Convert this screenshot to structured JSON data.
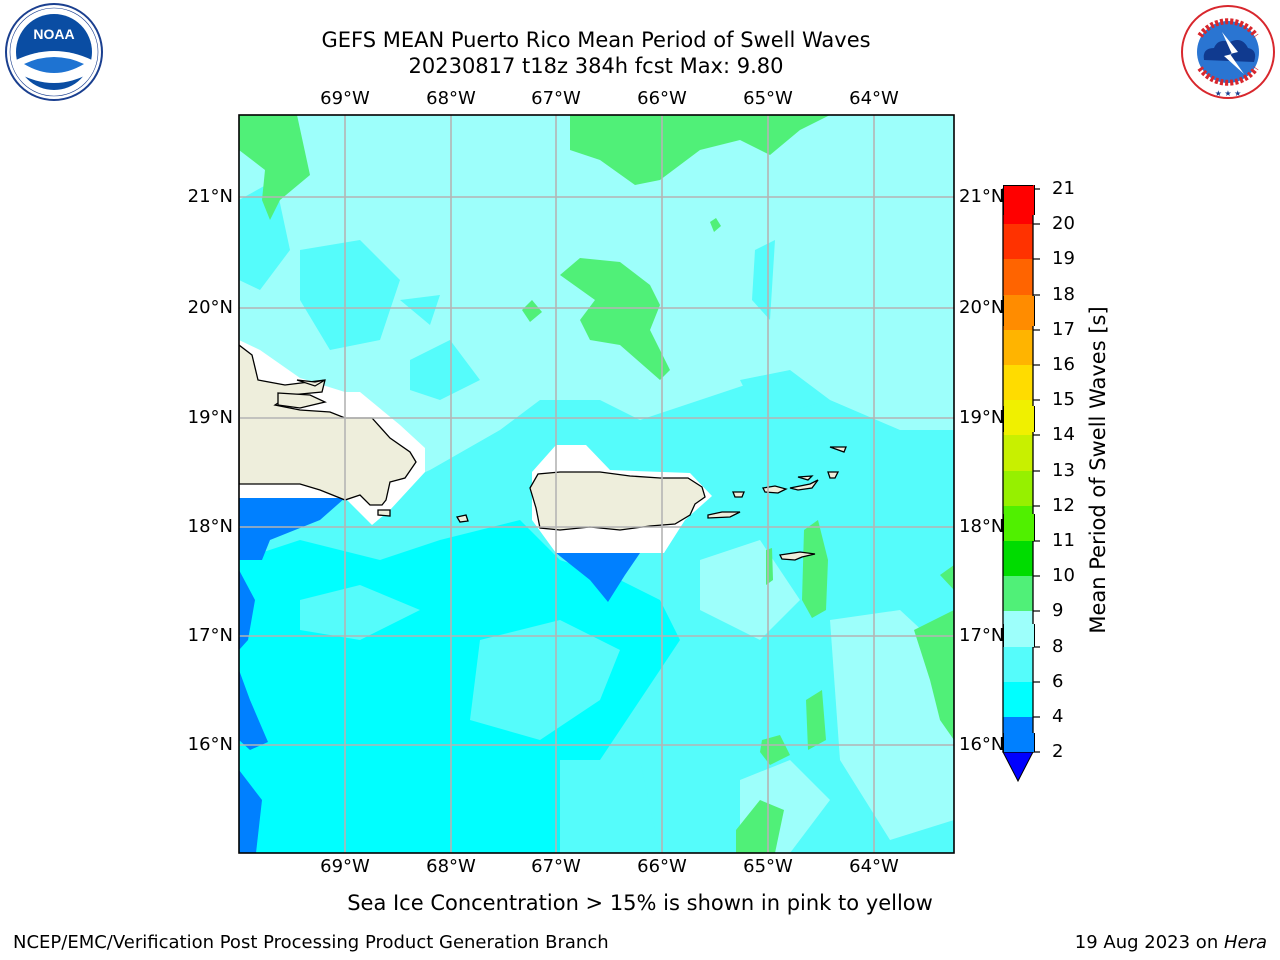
{
  "header": {
    "title_line1": "GEFS MEAN Puerto Rico Mean Period of Swell Waves",
    "title_line2": "20230817 t18z 384h fcst   Max: 9.80"
  },
  "logos": {
    "left": "noaa-logo",
    "right": "national-weather-service-logo"
  },
  "map": {
    "lon_ticks": [
      "69°W",
      "68°W",
      "67°W",
      "66°W",
      "65°W",
      "64°W"
    ],
    "lat_ticks": [
      "21°N",
      "20°N",
      "19°N",
      "18°N",
      "17°N",
      "16°N"
    ],
    "colors": {
      "ocean_light": "#9dfffb",
      "ocean_mid": "#55fcfb",
      "ocean_cyan": "#00ffff",
      "ocean_blue": "#0080ff",
      "green_9_10": "#50f078",
      "land": "#eeeedc",
      "grid": "#b4b4b4"
    }
  },
  "colorbar": {
    "label": "Mean Period of Swell Waves [s]",
    "ticks": [
      "21",
      "20",
      "19",
      "18",
      "17",
      "16",
      "15",
      "14",
      "13",
      "12",
      "11",
      "10",
      "9",
      "8",
      "6",
      "4",
      "2"
    ],
    "colors": [
      "#0000ff",
      "#0080ff",
      "#00ffff",
      "#55fcfb",
      "#9dfffb",
      "#50f078",
      "#00dc00",
      "#50f000",
      "#96f000",
      "#c8f000",
      "#f0f000",
      "#ffdc00",
      "#ffb400",
      "#ff8c00",
      "#ff6400",
      "#ff3200",
      "#ff0000"
    ]
  },
  "annotations": {
    "sea_ice_note": "Sea Ice Concentration > 15% is shown in pink to yellow"
  },
  "footer": {
    "left": "NCEP/EMC/Verification Post Processing Product Generation Branch",
    "right_prefix": "19 Aug 2023 on ",
    "right_system": "Hera"
  }
}
